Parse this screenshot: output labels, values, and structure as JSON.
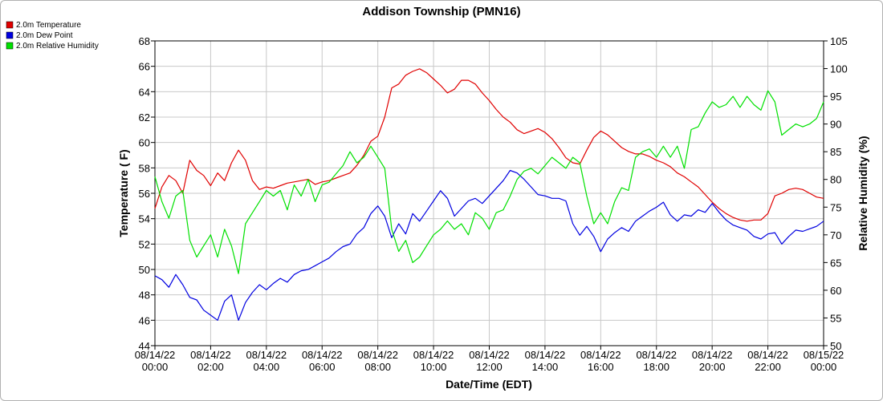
{
  "chart_data": {
    "type": "line",
    "title": "Addison Township (PMN16)",
    "xlabel": "Date/Time (EDT)",
    "ylabel": "Temperature ( F)",
    "y2label": "Relative Humidity (%)",
    "ylim": [
      44,
      68
    ],
    "y2lim": [
      50,
      105
    ],
    "yticks": [
      "44",
      "46",
      "48",
      "50",
      "52",
      "54",
      "56",
      "58",
      "60",
      "62",
      "64",
      "66",
      "68"
    ],
    "y2ticks": [
      "50",
      "55",
      "60",
      "65",
      "70",
      "75",
      "80",
      "85",
      "90",
      "95",
      "100",
      "105"
    ],
    "grid": true,
    "legend_position": "top-left",
    "x_hours": [
      0,
      24
    ],
    "x_ticks": [
      {
        "date": "08/14/22",
        "time": "00:00"
      },
      {
        "date": "08/14/22",
        "time": "02:00"
      },
      {
        "date": "08/14/22",
        "time": "04:00"
      },
      {
        "date": "08/14/22",
        "time": "06:00"
      },
      {
        "date": "08/14/22",
        "time": "08:00"
      },
      {
        "date": "08/14/22",
        "time": "10:00"
      },
      {
        "date": "08/14/22",
        "time": "12:00"
      },
      {
        "date": "08/14/22",
        "time": "14:00"
      },
      {
        "date": "08/14/22",
        "time": "16:00"
      },
      {
        "date": "08/14/22",
        "time": "18:00"
      },
      {
        "date": "08/14/22",
        "time": "20:00"
      },
      {
        "date": "08/14/22",
        "time": "22:00"
      },
      {
        "date": "08/15/22",
        "time": "00:00"
      }
    ],
    "series": [
      {
        "name": "2.0m Temperature",
        "color": "#e00000",
        "axis": "left",
        "x": [
          0,
          0.25,
          0.5,
          0.75,
          1.0,
          1.25,
          1.5,
          1.75,
          2.0,
          2.25,
          2.5,
          2.75,
          3.0,
          3.25,
          3.5,
          3.75,
          4.0,
          4.25,
          4.5,
          4.75,
          5.0,
          5.25,
          5.5,
          5.75,
          6.0,
          6.25,
          6.5,
          6.75,
          7.0,
          7.25,
          7.5,
          7.75,
          8.0,
          8.25,
          8.5,
          8.75,
          9.0,
          9.25,
          9.5,
          9.75,
          10.0,
          10.25,
          10.5,
          10.75,
          11.0,
          11.25,
          11.5,
          11.75,
          12.0,
          12.25,
          12.5,
          12.75,
          13.0,
          13.25,
          13.5,
          13.75,
          14.0,
          14.25,
          14.5,
          14.75,
          15.0,
          15.25,
          15.5,
          15.75,
          16.0,
          16.25,
          16.5,
          16.75,
          17.0,
          17.25,
          17.5,
          17.75,
          18.0,
          18.25,
          18.5,
          18.75,
          19.0,
          19.25,
          19.5,
          19.75,
          20.0,
          20.25,
          20.5,
          20.75,
          21.0,
          21.25,
          21.5,
          21.75,
          22.0,
          22.25,
          22.5,
          22.75,
          23.0,
          23.25,
          23.5,
          23.75,
          24.0
        ],
        "values": [
          54.8,
          56.5,
          57.4,
          57.0,
          56.0,
          58.6,
          57.8,
          57.4,
          56.6,
          57.6,
          57.0,
          58.4,
          59.4,
          58.6,
          57.0,
          56.3,
          56.5,
          56.4,
          56.6,
          56.8,
          56.9,
          57.0,
          57.1,
          56.7,
          56.9,
          57.0,
          57.2,
          57.4,
          57.6,
          58.2,
          59.0,
          60.1,
          60.5,
          62.0,
          64.3,
          64.6,
          65.3,
          65.6,
          65.8,
          65.5,
          65.0,
          64.5,
          63.9,
          64.2,
          64.9,
          64.9,
          64.6,
          63.9,
          63.3,
          62.6,
          62.0,
          61.6,
          61.0,
          60.7,
          60.9,
          61.1,
          60.8,
          60.3,
          59.6,
          58.8,
          58.4,
          58.3,
          59.4,
          60.4,
          60.9,
          60.6,
          60.1,
          59.6,
          59.3,
          59.1,
          59.1,
          58.9,
          58.6,
          58.4,
          58.1,
          57.6,
          57.3,
          56.9,
          56.5,
          55.9,
          55.3,
          54.8,
          54.4,
          54.1,
          53.9,
          53.8,
          53.9,
          53.9,
          54.4,
          55.8,
          56.0,
          56.3,
          56.4,
          56.3,
          56.0,
          55.7,
          55.6
        ]
      },
      {
        "name": "2.0m Dew Point",
        "color": "#0000e0",
        "axis": "left",
        "x": [
          0,
          0.25,
          0.5,
          0.75,
          1.0,
          1.25,
          1.5,
          1.75,
          2.0,
          2.25,
          2.5,
          2.75,
          3.0,
          3.25,
          3.5,
          3.75,
          4.0,
          4.25,
          4.5,
          4.75,
          5.0,
          5.25,
          5.5,
          5.75,
          6.0,
          6.25,
          6.5,
          6.75,
          7.0,
          7.25,
          7.5,
          7.75,
          8.0,
          8.25,
          8.5,
          8.75,
          9.0,
          9.25,
          9.5,
          9.75,
          10.0,
          10.25,
          10.5,
          10.75,
          11.0,
          11.25,
          11.5,
          11.75,
          12.0,
          12.25,
          12.5,
          12.75,
          13.0,
          13.25,
          13.5,
          13.75,
          14.0,
          14.25,
          14.5,
          14.75,
          15.0,
          15.25,
          15.5,
          15.75,
          16.0,
          16.25,
          16.5,
          16.75,
          17.0,
          17.25,
          17.5,
          17.75,
          18.0,
          18.25,
          18.5,
          18.75,
          19.0,
          19.25,
          19.5,
          19.75,
          20.0,
          20.25,
          20.5,
          20.75,
          21.0,
          21.25,
          21.5,
          21.75,
          22.0,
          22.25,
          22.5,
          22.75,
          23.0,
          23.25,
          23.5,
          23.75,
          24.0
        ],
        "values": [
          49.5,
          49.2,
          48.6,
          49.6,
          48.8,
          47.8,
          47.6,
          46.8,
          46.4,
          46.0,
          47.5,
          48.0,
          46.0,
          47.4,
          48.2,
          48.8,
          48.4,
          48.9,
          49.3,
          49.0,
          49.6,
          49.9,
          50.0,
          50.3,
          50.6,
          50.9,
          51.4,
          51.8,
          52.0,
          52.8,
          53.3,
          54.4,
          55.0,
          54.2,
          52.5,
          53.6,
          52.8,
          54.4,
          53.8,
          54.6,
          55.4,
          56.2,
          55.6,
          54.2,
          54.8,
          55.4,
          55.6,
          55.2,
          55.8,
          56.4,
          57.0,
          57.8,
          57.6,
          57.1,
          56.5,
          55.9,
          55.8,
          55.6,
          55.6,
          55.4,
          53.6,
          52.7,
          53.4,
          52.6,
          51.4,
          52.4,
          52.9,
          53.3,
          53.0,
          53.8,
          54.2,
          54.6,
          54.9,
          55.3,
          54.3,
          53.8,
          54.3,
          54.2,
          54.7,
          54.5,
          55.2,
          54.5,
          53.9,
          53.5,
          53.3,
          53.1,
          52.6,
          52.4,
          52.8,
          52.9,
          52.0,
          52.6,
          53.1,
          53.0,
          53.2,
          53.4,
          53.8
        ]
      },
      {
        "name": "2.0m Relative Humidity",
        "color": "#00e000",
        "axis": "right",
        "x": [
          0,
          0.25,
          0.5,
          0.75,
          1.0,
          1.25,
          1.5,
          1.75,
          2.0,
          2.25,
          2.5,
          2.75,
          3.0,
          3.25,
          3.5,
          3.75,
          4.0,
          4.25,
          4.5,
          4.75,
          5.0,
          5.25,
          5.5,
          5.75,
          6.0,
          6.25,
          6.5,
          6.75,
          7.0,
          7.25,
          7.5,
          7.75,
          8.0,
          8.25,
          8.5,
          8.75,
          9.0,
          9.25,
          9.5,
          9.75,
          10.0,
          10.25,
          10.5,
          10.75,
          11.0,
          11.25,
          11.5,
          11.75,
          12.0,
          12.25,
          12.5,
          12.75,
          13.0,
          13.25,
          13.5,
          13.75,
          14.0,
          14.25,
          14.5,
          14.75,
          15.0,
          15.25,
          15.5,
          15.75,
          16.0,
          16.25,
          16.5,
          16.75,
          17.0,
          17.25,
          17.5,
          17.75,
          18.0,
          18.25,
          18.5,
          18.75,
          19.0,
          19.25,
          19.5,
          19.75,
          20.0,
          20.25,
          20.5,
          20.75,
          21.0,
          21.25,
          21.5,
          21.75,
          22.0,
          22.25,
          22.5,
          22.75,
          23.0,
          23.25,
          23.5,
          23.75,
          24.0
        ],
        "values": [
          80.5,
          76.0,
          73.0,
          77.0,
          78.0,
          69.0,
          66.0,
          68.0,
          70.0,
          66.0,
          71.0,
          68.0,
          63.0,
          72.0,
          74.0,
          76.0,
          78.0,
          77.0,
          78.0,
          74.5,
          79.0,
          77.0,
          80.0,
          76.0,
          79.0,
          79.5,
          81.0,
          82.5,
          85.0,
          83.0,
          84.0,
          86.0,
          84.0,
          82.0,
          71.0,
          67.0,
          69.0,
          65.0,
          66.0,
          68.0,
          70.0,
          71.0,
          72.5,
          71.0,
          72.0,
          70.0,
          74.0,
          73.0,
          71.0,
          74.0,
          74.5,
          77.0,
          80.0,
          81.5,
          82.0,
          81.0,
          82.5,
          84.0,
          83.0,
          82.0,
          84.0,
          83.0,
          77.0,
          72.0,
          74.0,
          72.0,
          76.0,
          78.5,
          78.0,
          84.0,
          85.0,
          85.5,
          84.0,
          86.0,
          84.0,
          86.0,
          82.0,
          89.0,
          89.5,
          92.0,
          94.0,
          93.0,
          93.5,
          95.0,
          93.0,
          95.0,
          93.5,
          92.5,
          96.0,
          94.0,
          88.0,
          89.0,
          90.0,
          89.5,
          90.0,
          91.0,
          94.0
        ]
      }
    ]
  }
}
